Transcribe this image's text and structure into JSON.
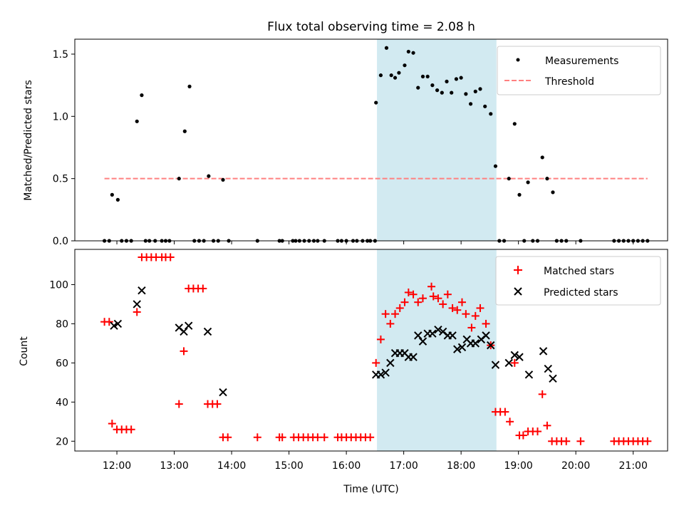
{
  "colors": {
    "measurement": "#000000",
    "threshold": "#ff8080",
    "matched": "#ff0000",
    "predicted": "#000000",
    "window": "#add8e6"
  },
  "chart_data": [
    {
      "type": "scatter",
      "title": "Flux total observing time = 2.08 h",
      "xlabel": "",
      "ylabel": "Matched/Predicted stars",
      "xticks": [
        "12:00",
        "13:00",
        "14:00",
        "15:00",
        "16:00",
        "17:00",
        "18:00",
        "19:00",
        "20:00",
        "21:00"
      ],
      "yticks": [
        "0.0",
        "0.5",
        "1.0",
        "1.5"
      ],
      "ylim": [
        0,
        1.62
      ],
      "xlim": [
        "11:16",
        "21:36"
      ],
      "highlight_window": [
        "16:32",
        "18:37"
      ],
      "grid": false,
      "legend_position": "upper right",
      "legend": [
        "Measurements",
        "Threshold"
      ],
      "series": [
        {
          "name": "Measurements",
          "marker": "dot",
          "points": [
            [
              "11:47",
              0
            ],
            [
              "11:52",
              0
            ],
            [
              "11:55",
              0.37
            ],
            [
              "12:01",
              0.33
            ],
            [
              "12:05",
              0
            ],
            [
              "12:10",
              0
            ],
            [
              "12:15",
              0
            ],
            [
              "12:21",
              0.96
            ],
            [
              "12:26",
              1.17
            ],
            [
              "12:30",
              0
            ],
            [
              "12:34",
              0
            ],
            [
              "12:40",
              0
            ],
            [
              "12:47",
              0
            ],
            [
              "12:51",
              0
            ],
            [
              "12:55",
              0
            ],
            [
              "13:05",
              0.5
            ],
            [
              "13:11",
              0.88
            ],
            [
              "13:16",
              1.24
            ],
            [
              "13:21",
              0
            ],
            [
              "13:26",
              0
            ],
            [
              "13:31",
              0
            ],
            [
              "13:36",
              0.52
            ],
            [
              "13:41",
              0
            ],
            [
              "13:46",
              0
            ],
            [
              "13:51",
              0.49
            ],
            [
              "13:57",
              0
            ],
            [
              "14:27",
              0
            ],
            [
              "14:50",
              0
            ],
            [
              "14:53",
              0
            ],
            [
              "15:04",
              0
            ],
            [
              "15:07",
              0
            ],
            [
              "15:11",
              0
            ],
            [
              "15:16",
              0
            ],
            [
              "15:21",
              0
            ],
            [
              "15:26",
              0
            ],
            [
              "15:30",
              0
            ],
            [
              "15:37",
              0
            ],
            [
              "15:51",
              0
            ],
            [
              "15:55",
              0
            ],
            [
              "16:00",
              0
            ],
            [
              "16:07",
              0
            ],
            [
              "16:11",
              0
            ],
            [
              "16:17",
              0
            ],
            [
              "16:22",
              0
            ],
            [
              "16:25",
              0
            ],
            [
              "16:30",
              0
            ],
            [
              "16:31",
              1.11
            ],
            [
              "16:36",
              1.33
            ],
            [
              "16:42",
              1.55
            ],
            [
              "16:47",
              1.33
            ],
            [
              "16:51",
              1.31
            ],
            [
              "16:55",
              1.35
            ],
            [
              "17:01",
              1.41
            ],
            [
              "17:05",
              1.52
            ],
            [
              "17:10",
              1.51
            ],
            [
              "17:15",
              1.23
            ],
            [
              "17:20",
              1.32
            ],
            [
              "17:25",
              1.32
            ],
            [
              "17:30",
              1.25
            ],
            [
              "17:35",
              1.21
            ],
            [
              "17:40",
              1.19
            ],
            [
              "17:45",
              1.28
            ],
            [
              "17:50",
              1.19
            ],
            [
              "17:55",
              1.3
            ],
            [
              "18:00",
              1.31
            ],
            [
              "18:05",
              1.18
            ],
            [
              "18:10",
              1.1
            ],
            [
              "18:15",
              1.2
            ],
            [
              "18:20",
              1.22
            ],
            [
              "18:25",
              1.08
            ],
            [
              "18:31",
              1.02
            ],
            [
              "18:36",
              0.6
            ],
            [
              "18:40",
              0
            ],
            [
              "18:45",
              0
            ],
            [
              "18:50",
              0.5
            ],
            [
              "18:56",
              0.94
            ],
            [
              "19:01",
              0.37
            ],
            [
              "19:06",
              0
            ],
            [
              "19:10",
              0.47
            ],
            [
              "19:15",
              0
            ],
            [
              "19:20",
              0
            ],
            [
              "19:25",
              0.67
            ],
            [
              "19:30",
              0.5
            ],
            [
              "19:36",
              0.39
            ],
            [
              "19:40",
              0
            ],
            [
              "19:45",
              0
            ],
            [
              "19:50",
              0
            ],
            [
              "20:05",
              0
            ],
            [
              "20:40",
              0
            ],
            [
              "20:45",
              0
            ],
            [
              "20:50",
              0
            ],
            [
              "20:55",
              0
            ],
            [
              "21:00",
              0
            ],
            [
              "21:05",
              0
            ],
            [
              "21:10",
              0
            ],
            [
              "21:15",
              0
            ]
          ]
        },
        {
          "name": "Threshold",
          "style": "dashed",
          "points": [
            [
              "11:47",
              0.5
            ],
            [
              "21:15",
              0.5
            ]
          ]
        }
      ]
    },
    {
      "type": "scatter",
      "title": "",
      "xlabel": "Time (UTC)",
      "ylabel": "Count",
      "xticks": [
        "12:00",
        "13:00",
        "14:00",
        "15:00",
        "16:00",
        "17:00",
        "18:00",
        "19:00",
        "20:00",
        "21:00"
      ],
      "yticks": [
        "20",
        "40",
        "60",
        "80",
        "100"
      ],
      "ylim": [
        15,
        118
      ],
      "xlim": [
        "11:16",
        "21:36"
      ],
      "highlight_window": [
        "16:32",
        "18:37"
      ],
      "grid": false,
      "legend_position": "upper right",
      "legend": [
        "Matched stars",
        "Predicted stars"
      ],
      "series": [
        {
          "name": "Matched stars",
          "marker": "plus",
          "points": [
            [
              "11:47",
              81
            ],
            [
              "11:52",
              81
            ],
            [
              "11:55",
              29
            ],
            [
              "12:00",
              26
            ],
            [
              "12:05",
              26
            ],
            [
              "12:10",
              26
            ],
            [
              "12:15",
              26
            ],
            [
              "12:21",
              86
            ],
            [
              "12:26",
              114
            ],
            [
              "12:31",
              114
            ],
            [
              "12:36",
              114
            ],
            [
              "12:41",
              114
            ],
            [
              "12:47",
              114
            ],
            [
              "12:51",
              114
            ],
            [
              "12:56",
              114
            ],
            [
              "13:05",
              39
            ],
            [
              "13:10",
              66
            ],
            [
              "13:15",
              98
            ],
            [
              "13:20",
              98
            ],
            [
              "13:25",
              98
            ],
            [
              "13:30",
              98
            ],
            [
              "13:35",
              39
            ],
            [
              "13:40",
              39
            ],
            [
              "13:45",
              39
            ],
            [
              "13:51",
              22
            ],
            [
              "13:56",
              22
            ],
            [
              "14:27",
              22
            ],
            [
              "14:50",
              22
            ],
            [
              "14:53",
              22
            ],
            [
              "15:05",
              22
            ],
            [
              "15:10",
              22
            ],
            [
              "15:15",
              22
            ],
            [
              "15:20",
              22
            ],
            [
              "15:25",
              22
            ],
            [
              "15:30",
              22
            ],
            [
              "15:37",
              22
            ],
            [
              "15:51",
              22
            ],
            [
              "15:55",
              22
            ],
            [
              "16:00",
              22
            ],
            [
              "16:05",
              22
            ],
            [
              "16:10",
              22
            ],
            [
              "16:15",
              22
            ],
            [
              "16:20",
              22
            ],
            [
              "16:25",
              22
            ],
            [
              "16:31",
              60
            ],
            [
              "16:36",
              72
            ],
            [
              "16:41",
              85
            ],
            [
              "16:46",
              80
            ],
            [
              "16:51",
              85
            ],
            [
              "16:56",
              88
            ],
            [
              "17:01",
              91
            ],
            [
              "17:05",
              96
            ],
            [
              "17:10",
              95
            ],
            [
              "17:15",
              91
            ],
            [
              "17:20",
              93
            ],
            [
              "17:29",
              99
            ],
            [
              "17:31",
              94
            ],
            [
              "17:36",
              93
            ],
            [
              "17:41",
              90
            ],
            [
              "17:46",
              95
            ],
            [
              "17:51",
              88
            ],
            [
              "17:56",
              87
            ],
            [
              "18:01",
              91
            ],
            [
              "18:05",
              85
            ],
            [
              "18:11",
              78
            ],
            [
              "18:15",
              84
            ],
            [
              "18:20",
              88
            ],
            [
              "18:26",
              80
            ],
            [
              "18:31",
              69
            ],
            [
              "18:36",
              35
            ],
            [
              "18:41",
              35
            ],
            [
              "18:46",
              35
            ],
            [
              "18:51",
              30
            ],
            [
              "18:56",
              60
            ],
            [
              "19:01",
              23
            ],
            [
              "19:05",
              23
            ],
            [
              "19:10",
              25
            ],
            [
              "19:15",
              25
            ],
            [
              "19:20",
              25
            ],
            [
              "19:25",
              44
            ],
            [
              "19:30",
              28
            ],
            [
              "19:35",
              20
            ],
            [
              "19:40",
              20
            ],
            [
              "19:45",
              20
            ],
            [
              "19:50",
              20
            ],
            [
              "20:05",
              20
            ],
            [
              "20:40",
              20
            ],
            [
              "20:45",
              20
            ],
            [
              "20:50",
              20
            ],
            [
              "20:55",
              20
            ],
            [
              "21:00",
              20
            ],
            [
              "21:05",
              20
            ],
            [
              "21:10",
              20
            ],
            [
              "21:15",
              20
            ]
          ]
        },
        {
          "name": "Predicted stars",
          "marker": "x",
          "points": [
            [
              "11:57",
              79
            ],
            [
              "12:01",
              80
            ],
            [
              "12:21",
              90
            ],
            [
              "12:26",
              97
            ],
            [
              "13:05",
              78
            ],
            [
              "13:10",
              76
            ],
            [
              "13:15",
              79
            ],
            [
              "13:35",
              76
            ],
            [
              "13:51",
              45
            ],
            [
              "16:31",
              54
            ],
            [
              "16:36",
              54
            ],
            [
              "16:41",
              55
            ],
            [
              "16:46",
              60
            ],
            [
              "16:51",
              65
            ],
            [
              "16:56",
              65
            ],
            [
              "17:01",
              65
            ],
            [
              "17:05",
              63
            ],
            [
              "17:10",
              63
            ],
            [
              "17:15",
              74
            ],
            [
              "17:20",
              71
            ],
            [
              "17:25",
              75
            ],
            [
              "17:30",
              75
            ],
            [
              "17:36",
              77
            ],
            [
              "17:41",
              76
            ],
            [
              "17:46",
              74
            ],
            [
              "17:51",
              74
            ],
            [
              "17:56",
              67
            ],
            [
              "18:01",
              68
            ],
            [
              "18:06",
              72
            ],
            [
              "18:10",
              70
            ],
            [
              "18:15",
              70
            ],
            [
              "18:21",
              72
            ],
            [
              "18:26",
              74
            ],
            [
              "18:31",
              69
            ],
            [
              "18:36",
              59
            ],
            [
              "18:50",
              60
            ],
            [
              "18:56",
              64
            ],
            [
              "19:01",
              63
            ],
            [
              "19:11",
              54
            ],
            [
              "19:26",
              66
            ],
            [
              "19:31",
              57
            ],
            [
              "19:36",
              52
            ]
          ]
        }
      ]
    }
  ]
}
